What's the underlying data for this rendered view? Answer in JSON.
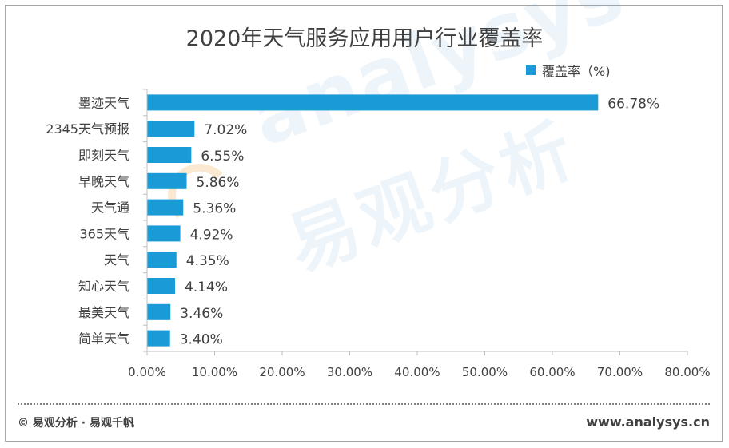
{
  "chart_data": {
    "type": "bar",
    "orientation": "horizontal",
    "title": "2020年天气服务应用用户行业覆盖率",
    "categories": [
      "墨迹天气",
      "2345天气预报",
      "即刻天气",
      "早晚天气",
      "天气通",
      "365天气",
      "天气",
      "知心天气",
      "最美天气",
      "简单天气"
    ],
    "series": [
      {
        "name": "覆盖率（%)",
        "values": [
          66.78,
          7.02,
          6.55,
          5.86,
          5.36,
          4.92,
          4.35,
          4.14,
          3.46,
          3.4
        ],
        "value_labels": [
          "66.78%",
          "7.02%",
          "6.55%",
          "5.86%",
          "5.36%",
          "4.92%",
          "4.35%",
          "4.14%",
          "3.46%",
          "3.40%"
        ]
      }
    ],
    "xlim": [
      0,
      80
    ],
    "x_ticks": [
      "0.00%",
      "10.00%",
      "20.00%",
      "30.00%",
      "40.00%",
      "50.00%",
      "60.00%",
      "70.00%",
      "80.00%"
    ],
    "legend_position": "top-right",
    "grid": false,
    "bar_color": "#1a9ad7",
    "axis_color": "#bfbfbf"
  },
  "watermark": {
    "en": "analysys",
    "cn": "易观分析"
  },
  "footer": {
    "left": "© 易观分析 · 易观千帆",
    "right": "www.analysys.cn"
  }
}
